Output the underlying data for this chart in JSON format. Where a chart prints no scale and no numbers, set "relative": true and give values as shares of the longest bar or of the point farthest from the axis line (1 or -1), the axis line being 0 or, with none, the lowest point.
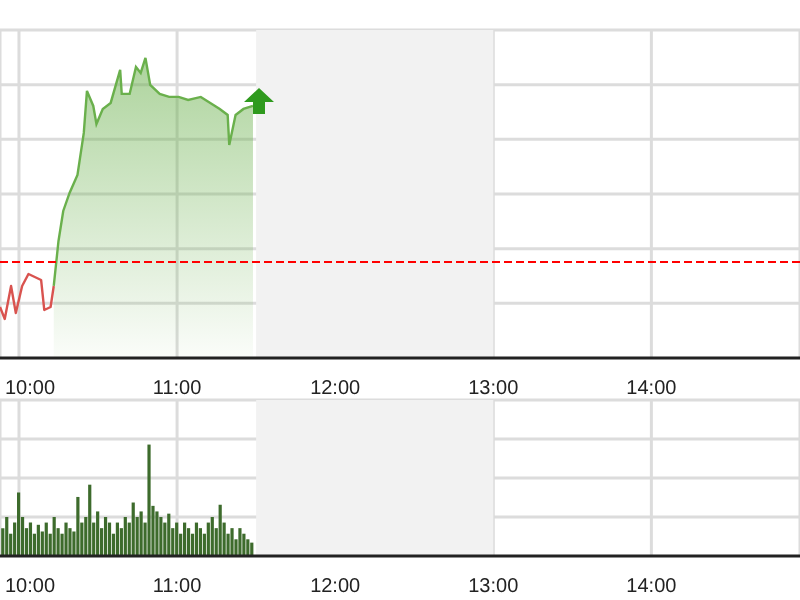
{
  "chart_data": [
    {
      "type": "line",
      "relative": true,
      "grid": true,
      "xlim": [
        9.88,
        14.94
      ],
      "xticks": [
        {
          "value": 10,
          "label": "10:00"
        },
        {
          "value": 11,
          "label": "11:00"
        },
        {
          "value": 12,
          "label": "12:00"
        },
        {
          "value": 13,
          "label": "13:00"
        },
        {
          "value": 14,
          "label": "14:00"
        }
      ],
      "series": [
        {
          "color": "#d9534f",
          "x": [
            9.88,
            9.91,
            9.95,
            9.98,
            10.02,
            10.06,
            10.1,
            10.14,
            10.16,
            10.2,
            10.22
          ],
          "values": [
            0.17,
            0.13,
            0.24,
            0.15,
            0.24,
            0.28,
            0.27,
            0.26,
            0.16,
            0.17,
            0.24
          ]
        },
        {
          "type": "area",
          "color": "#6ab04c",
          "x": [
            10.22,
            10.25,
            10.28,
            10.32,
            10.37,
            10.41,
            10.43,
            10.47,
            10.49,
            10.53,
            10.58,
            10.64,
            10.65,
            10.7,
            10.74,
            10.77,
            10.8,
            10.83,
            10.89,
            10.95,
            11.01,
            11.07,
            11.15,
            11.21,
            11.27,
            11.32,
            11.33,
            11.37,
            11.42,
            11.48
          ],
          "values": [
            0.24,
            0.39,
            0.49,
            0.55,
            0.61,
            0.75,
            0.89,
            0.84,
            0.78,
            0.83,
            0.85,
            0.96,
            0.88,
            0.88,
            0.97,
            0.95,
            1,
            0.91,
            0.88,
            0.87,
            0.87,
            0.86,
            0.87,
            0.85,
            0.83,
            0.81,
            0.71,
            0.81,
            0.83,
            0.84
          ]
        }
      ],
      "ref_lines": [
        {
          "axis": "y",
          "value": 0.32,
          "color": "#ff0000",
          "line_style": "dashed"
        }
      ],
      "bands": [
        {
          "axis": "x",
          "from": 11.5,
          "to": 13,
          "color": "#f2f2f2"
        }
      ]
    },
    {
      "type": "bar",
      "relative": true,
      "grid": true,
      "xlim": [
        9.88,
        14.94
      ],
      "xticks": [
        {
          "value": 10,
          "label": "10:00"
        },
        {
          "value": 11,
          "label": "11:00"
        },
        {
          "value": 12,
          "label": "12:00"
        },
        {
          "value": 13,
          "label": "13:00"
        },
        {
          "value": 14,
          "label": "14:00"
        }
      ],
      "series": [
        {
          "color": "#3d6b2c",
          "x": [
            9.9,
            9.925,
            9.95,
            9.975,
            10,
            10.025,
            10.05,
            10.075,
            10.1,
            10.125,
            10.15,
            10.175,
            10.2,
            10.225,
            10.25,
            10.275,
            10.3,
            10.325,
            10.35,
            10.375,
            10.4,
            10.425,
            10.45,
            10.475,
            10.5,
            10.525,
            10.55,
            10.575,
            10.6,
            10.625,
            10.65,
            10.675,
            10.7,
            10.725,
            10.75,
            10.775,
            10.8,
            10.825,
            10.85,
            10.875,
            10.9,
            10.925,
            10.95,
            10.975,
            11,
            11.025,
            11.05,
            11.075,
            11.1,
            11.125,
            11.15,
            11.175,
            11.2,
            11.225,
            11.25,
            11.275,
            11.3,
            11.325,
            11.35,
            11.375,
            11.4,
            11.425,
            11.45,
            11.475
          ],
          "values": [
            0.25,
            0.35,
            0.2,
            0.3,
            0.57,
            0.35,
            0.25,
            0.3,
            0.2,
            0.28,
            0.22,
            0.3,
            0.2,
            0.35,
            0.25,
            0.2,
            0.3,
            0.25,
            0.22,
            0.53,
            0.3,
            0.35,
            0.64,
            0.3,
            0.4,
            0.25,
            0.35,
            0.3,
            0.2,
            0.3,
            0.25,
            0.35,
            0.3,
            0.48,
            0.35,
            0.4,
            0.3,
            1,
            0.45,
            0.4,
            0.35,
            0.3,
            0.38,
            0.25,
            0.3,
            0.2,
            0.3,
            0.25,
            0.2,
            0.3,
            0.25,
            0.2,
            0.3,
            0.35,
            0.25,
            0.46,
            0.3,
            0.2,
            0.25,
            0.15,
            0.25,
            0.2,
            0.15,
            0.12
          ]
        }
      ],
      "bands": [
        {
          "axis": "x",
          "from": 11.5,
          "to": 13,
          "color": "#f2f2f2"
        }
      ]
    }
  ]
}
